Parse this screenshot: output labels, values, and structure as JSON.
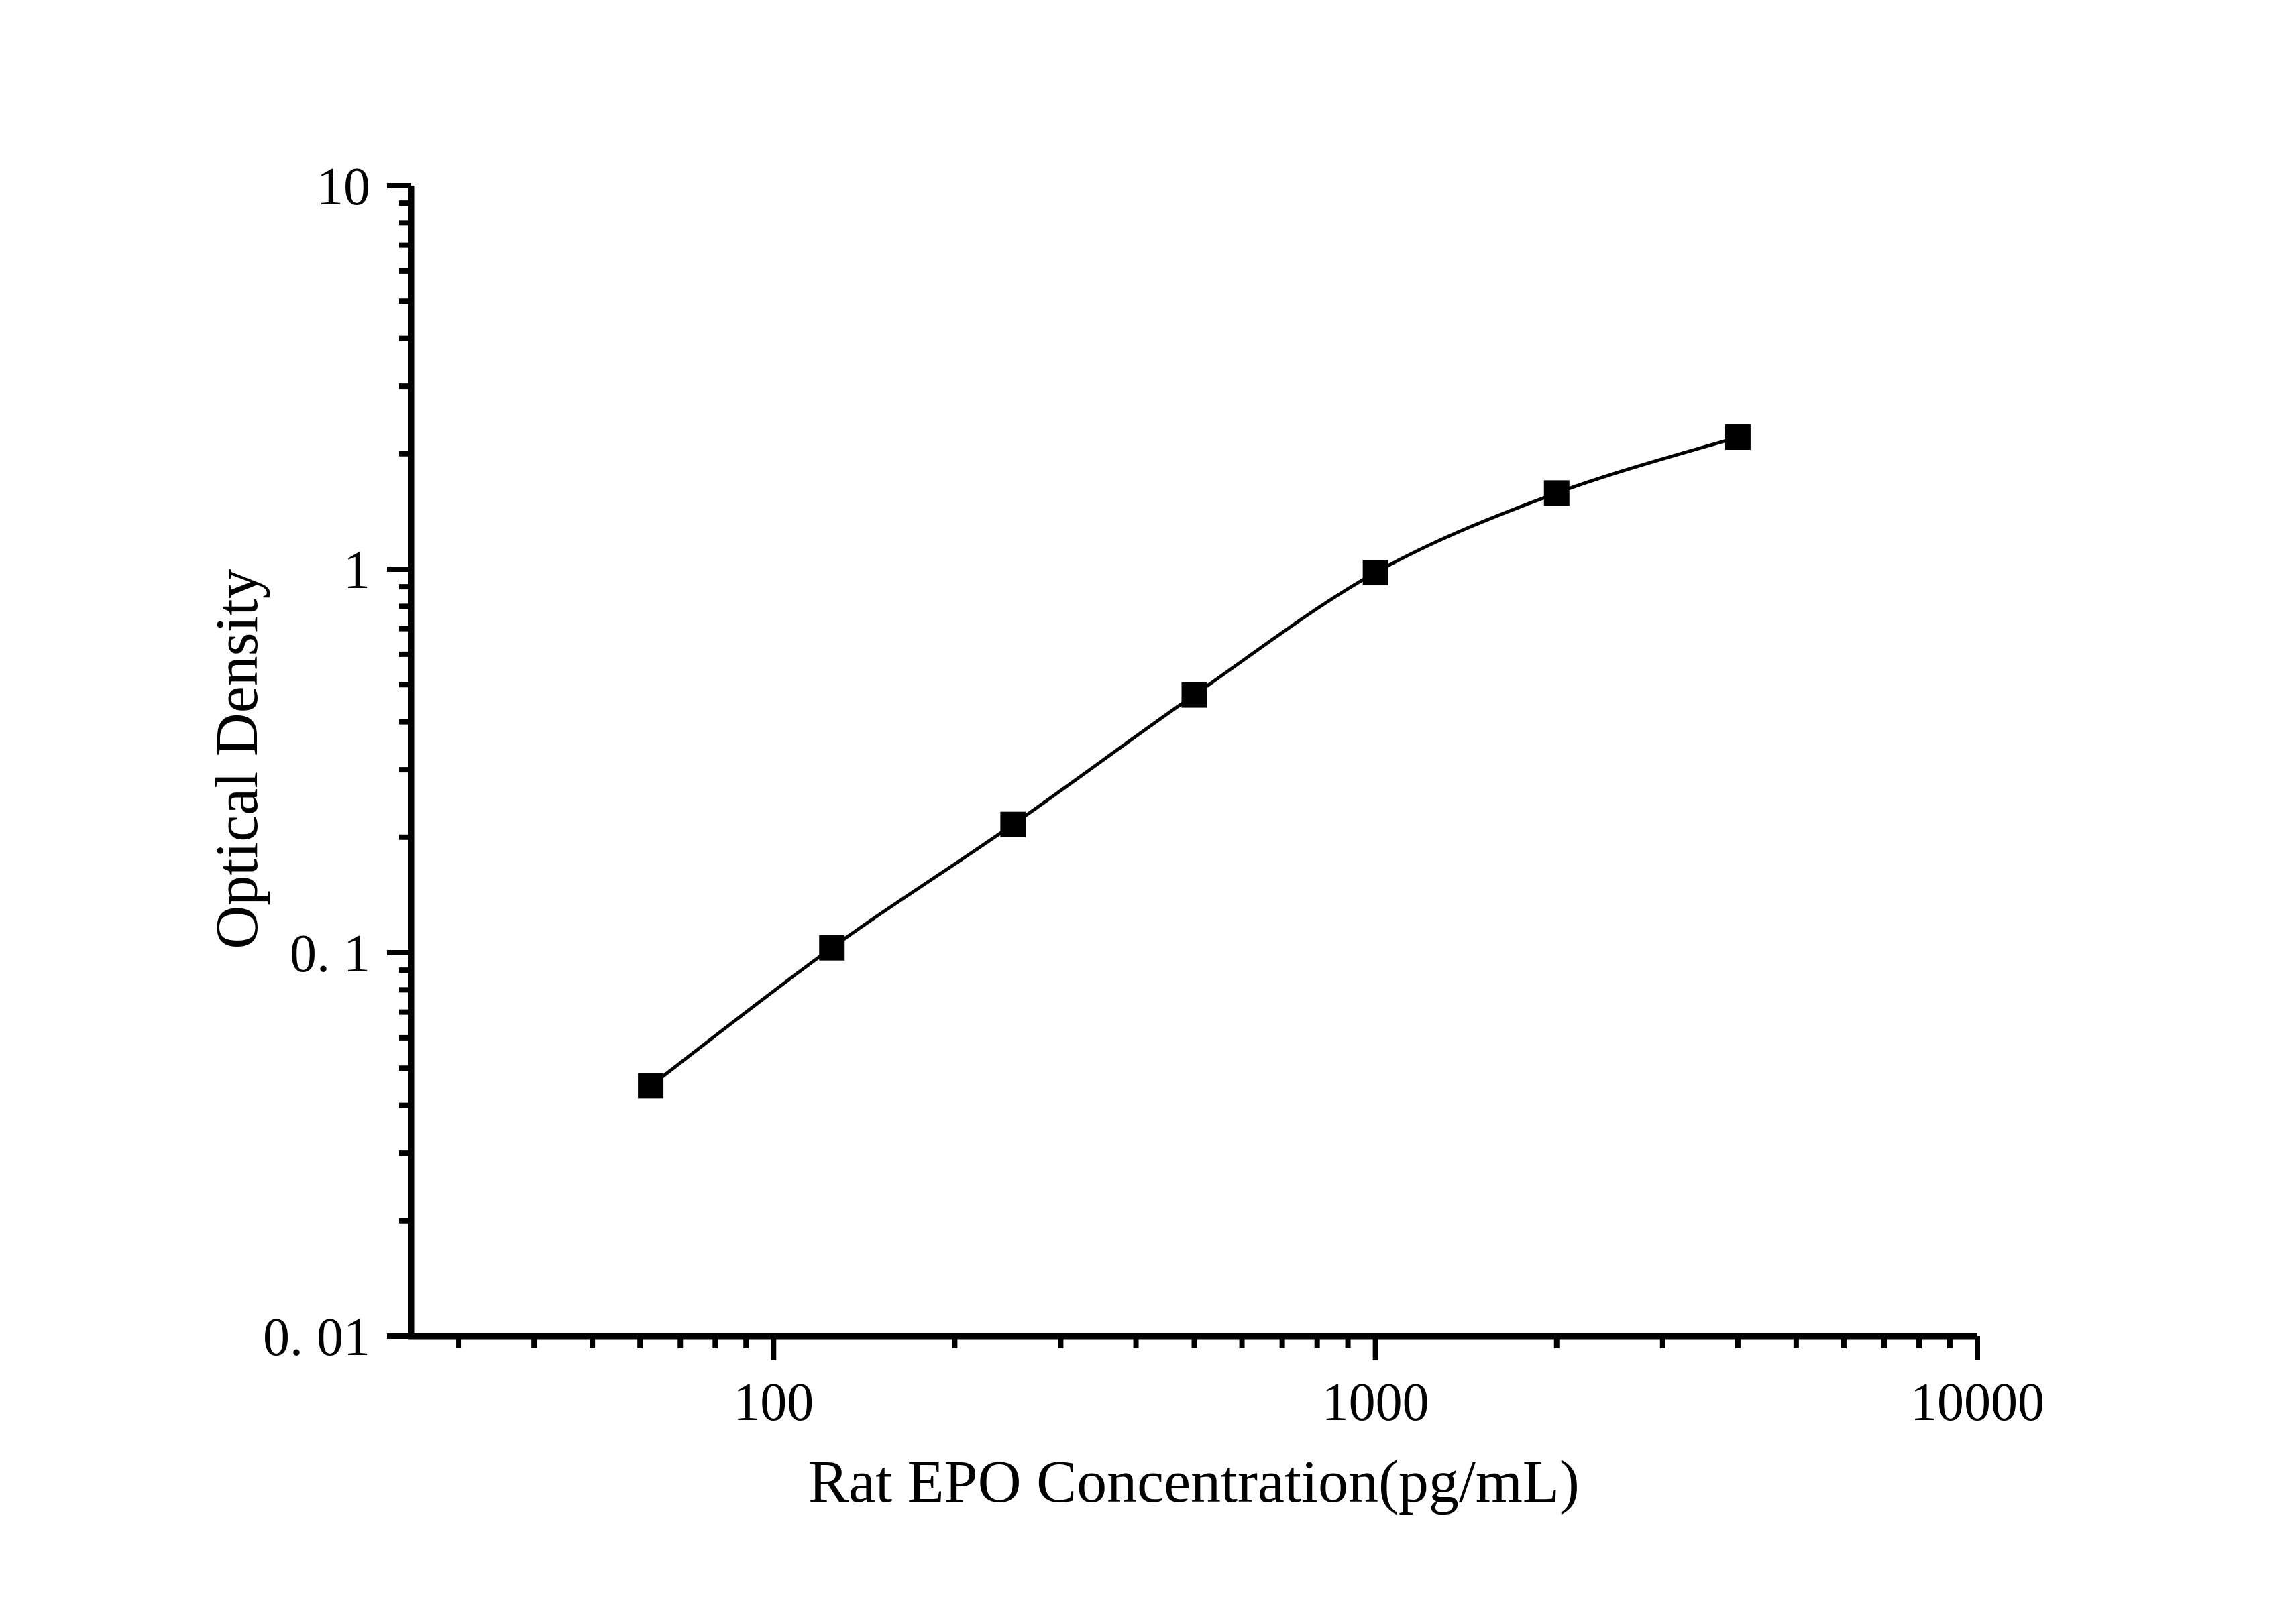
{
  "figure": {
    "background": "#ffffff",
    "ink": "#000000"
  },
  "chart_data": {
    "type": "line",
    "title": "",
    "xlabel": "Rat EPO Concentration(pg/mL)",
    "ylabel": "Optical Density",
    "x_scale": "log",
    "y_scale": "log",
    "xlim": [
      25,
      10000
    ],
    "ylim": [
      0.01,
      10
    ],
    "grid": "off",
    "legend": "none",
    "series": [
      {
        "x": [
          62.5,
          125,
          250,
          500,
          1000,
          2000,
          4000
        ],
        "y": [
          0.045,
          0.103,
          0.216,
          0.47,
          0.98,
          1.58,
          2.21
        ],
        "marker": "filled-square",
        "marker_color": "#000000",
        "line_color": "#000000",
        "line_style": "solid"
      }
    ],
    "x_major_ticks": [
      {
        "value": 100,
        "label": "100"
      },
      {
        "value": 1000,
        "label": "1000"
      },
      {
        "value": 10000,
        "label": "10000"
      }
    ],
    "y_major_ticks": [
      {
        "value": 10,
        "label": "10"
      },
      {
        "value": 1,
        "label": "1"
      },
      {
        "value": 0.1,
        "label": "0. 1"
      },
      {
        "value": 0.01,
        "label": "0. 01"
      }
    ],
    "minor_ticks": "log sub-ticks 2-9 per decade, outward"
  }
}
